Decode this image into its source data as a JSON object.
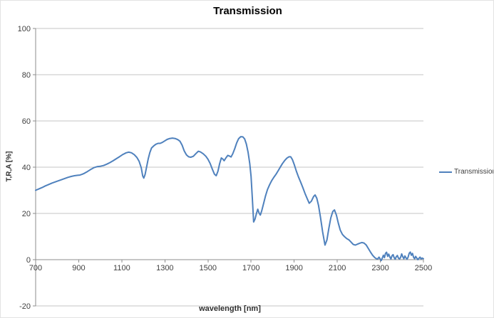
{
  "chart": {
    "title": "Transmission"
  },
  "chart_data": {
    "type": "line",
    "title": "Transmission",
    "xlabel": "wavelength [nm]",
    "ylabel": "T,R,A [%]",
    "xlim": [
      700,
      2500
    ],
    "ylim": [
      -20,
      100
    ],
    "x_ticks": [
      700,
      900,
      1100,
      1300,
      1500,
      1700,
      1900,
      2100,
      2300,
      2500
    ],
    "y_ticks": [
      -20,
      0,
      20,
      40,
      60,
      80,
      100
    ],
    "grid": "horizontal-only",
    "legend_position": "right",
    "colors": {
      "line": "#4F81BD",
      "grid": "#C6C6C6",
      "axis": "#8C8C8C",
      "tick_text": "#404040",
      "title_text": "#000000"
    },
    "series": [
      {
        "name": "Transmission",
        "color": "#4F81BD",
        "points": [
          [
            700,
            30.0
          ],
          [
            715,
            30.6
          ],
          [
            730,
            31.2
          ],
          [
            745,
            31.9
          ],
          [
            760,
            32.5
          ],
          [
            775,
            33.1
          ],
          [
            790,
            33.6
          ],
          [
            805,
            34.1
          ],
          [
            820,
            34.6
          ],
          [
            835,
            35.1
          ],
          [
            850,
            35.6
          ],
          [
            865,
            36.0
          ],
          [
            880,
            36.3
          ],
          [
            895,
            36.5
          ],
          [
            905,
            36.6
          ],
          [
            915,
            36.9
          ],
          [
            925,
            37.3
          ],
          [
            940,
            38.1
          ],
          [
            955,
            39.0
          ],
          [
            970,
            39.8
          ],
          [
            985,
            40.2
          ],
          [
            1000,
            40.4
          ],
          [
            1015,
            40.7
          ],
          [
            1030,
            41.3
          ],
          [
            1045,
            42.0
          ],
          [
            1060,
            42.8
          ],
          [
            1075,
            43.7
          ],
          [
            1090,
            44.6
          ],
          [
            1105,
            45.5
          ],
          [
            1120,
            46.2
          ],
          [
            1132,
            46.5
          ],
          [
            1145,
            46.2
          ],
          [
            1158,
            45.4
          ],
          [
            1170,
            44.2
          ],
          [
            1180,
            42.6
          ],
          [
            1190,
            39.8
          ],
          [
            1197,
            36.2
          ],
          [
            1202,
            35.3
          ],
          [
            1208,
            36.8
          ],
          [
            1215,
            40.0
          ],
          [
            1222,
            43.4
          ],
          [
            1230,
            46.3
          ],
          [
            1238,
            48.3
          ],
          [
            1248,
            49.2
          ],
          [
            1258,
            49.9
          ],
          [
            1268,
            50.3
          ],
          [
            1278,
            50.3
          ],
          [
            1288,
            50.7
          ],
          [
            1298,
            51.3
          ],
          [
            1310,
            52.0
          ],
          [
            1322,
            52.4
          ],
          [
            1335,
            52.6
          ],
          [
            1348,
            52.4
          ],
          [
            1360,
            51.9
          ],
          [
            1370,
            51.2
          ],
          [
            1380,
            49.5
          ],
          [
            1390,
            47.0
          ],
          [
            1400,
            45.3
          ],
          [
            1410,
            44.5
          ],
          [
            1420,
            44.3
          ],
          [
            1432,
            44.7
          ],
          [
            1444,
            45.9
          ],
          [
            1455,
            46.9
          ],
          [
            1465,
            46.6
          ],
          [
            1478,
            45.8
          ],
          [
            1490,
            44.7
          ],
          [
            1500,
            43.4
          ],
          [
            1510,
            41.6
          ],
          [
            1520,
            39.2
          ],
          [
            1530,
            37.0
          ],
          [
            1538,
            36.3
          ],
          [
            1546,
            38.2
          ],
          [
            1554,
            41.5
          ],
          [
            1562,
            44.0
          ],
          [
            1568,
            43.6
          ],
          [
            1575,
            42.8
          ],
          [
            1583,
            44.0
          ],
          [
            1592,
            45.1
          ],
          [
            1600,
            44.8
          ],
          [
            1607,
            44.4
          ],
          [
            1615,
            45.8
          ],
          [
            1624,
            48.0
          ],
          [
            1633,
            50.5
          ],
          [
            1642,
            52.3
          ],
          [
            1652,
            53.2
          ],
          [
            1662,
            53.1
          ],
          [
            1670,
            52.2
          ],
          [
            1678,
            50.0
          ],
          [
            1686,
            46.5
          ],
          [
            1694,
            41.5
          ],
          [
            1700,
            36.0
          ],
          [
            1706,
            26.5
          ],
          [
            1712,
            16.3
          ],
          [
            1718,
            17.5
          ],
          [
            1725,
            20.0
          ],
          [
            1731,
            21.8
          ],
          [
            1737,
            20.2
          ],
          [
            1743,
            19.3
          ],
          [
            1750,
            21.3
          ],
          [
            1758,
            24.3
          ],
          [
            1767,
            27.6
          ],
          [
            1776,
            30.3
          ],
          [
            1786,
            32.4
          ],
          [
            1796,
            34.2
          ],
          [
            1806,
            35.7
          ],
          [
            1816,
            37.0
          ],
          [
            1826,
            38.5
          ],
          [
            1836,
            40.1
          ],
          [
            1846,
            41.6
          ],
          [
            1856,
            42.9
          ],
          [
            1866,
            43.9
          ],
          [
            1876,
            44.5
          ],
          [
            1884,
            44.5
          ],
          [
            1892,
            43.3
          ],
          [
            1900,
            41.2
          ],
          [
            1910,
            38.3
          ],
          [
            1920,
            35.8
          ],
          [
            1930,
            33.6
          ],
          [
            1940,
            31.2
          ],
          [
            1950,
            28.7
          ],
          [
            1960,
            26.5
          ],
          [
            1970,
            24.4
          ],
          [
            1980,
            25.3
          ],
          [
            1990,
            27.3
          ],
          [
            1997,
            28.0
          ],
          [
            2005,
            26.6
          ],
          [
            2013,
            23.5
          ],
          [
            2022,
            18.5
          ],
          [
            2032,
            12.0
          ],
          [
            2043,
            6.3
          ],
          [
            2052,
            8.5
          ],
          [
            2061,
            13.5
          ],
          [
            2070,
            18.0
          ],
          [
            2079,
            20.8
          ],
          [
            2087,
            21.5
          ],
          [
            2096,
            19.3
          ],
          [
            2105,
            15.8
          ],
          [
            2114,
            12.8
          ],
          [
            2124,
            10.9
          ],
          [
            2134,
            9.9
          ],
          [
            2144,
            9.1
          ],
          [
            2154,
            8.6
          ],
          [
            2164,
            7.6
          ],
          [
            2174,
            6.6
          ],
          [
            2184,
            6.3
          ],
          [
            2194,
            6.7
          ],
          [
            2204,
            7.1
          ],
          [
            2214,
            7.4
          ],
          [
            2224,
            7.2
          ],
          [
            2234,
            6.4
          ],
          [
            2244,
            4.9
          ],
          [
            2254,
            3.3
          ],
          [
            2264,
            1.9
          ],
          [
            2274,
            0.9
          ],
          [
            2282,
            0.4
          ],
          [
            2288,
            0.3
          ],
          [
            2294,
            1.1
          ],
          [
            2299,
            0.3
          ],
          [
            2304,
            -0.4
          ],
          [
            2309,
            0.7
          ],
          [
            2314,
            1.9
          ],
          [
            2319,
            0.9
          ],
          [
            2324,
            2.7
          ],
          [
            2329,
            3.2
          ],
          [
            2334,
            1.4
          ],
          [
            2339,
            2.4
          ],
          [
            2344,
            1.1
          ],
          [
            2349,
            0.3
          ],
          [
            2354,
            1.7
          ],
          [
            2359,
            2.2
          ],
          [
            2364,
            0.9
          ],
          [
            2369,
            0.2
          ],
          [
            2374,
            1.3
          ],
          [
            2379,
            1.8
          ],
          [
            2384,
            0.7
          ],
          [
            2389,
            0.3
          ],
          [
            2394,
            1.0
          ],
          [
            2399,
            2.5
          ],
          [
            2404,
            1.3
          ],
          [
            2409,
            0.4
          ],
          [
            2414,
            1.6
          ],
          [
            2419,
            0.8
          ],
          [
            2424,
            0.2
          ],
          [
            2429,
            1.1
          ],
          [
            2434,
            2.8
          ],
          [
            2439,
            3.3
          ],
          [
            2444,
            1.9
          ],
          [
            2449,
            2.7
          ],
          [
            2454,
            1.1
          ],
          [
            2459,
            0.4
          ],
          [
            2464,
            1.4
          ],
          [
            2469,
            0.7
          ],
          [
            2474,
            0.0
          ],
          [
            2479,
            0.6
          ],
          [
            2484,
            1.1
          ],
          [
            2489,
            0.3
          ],
          [
            2494,
            0.7
          ],
          [
            2500,
            0.4
          ]
        ]
      }
    ]
  }
}
